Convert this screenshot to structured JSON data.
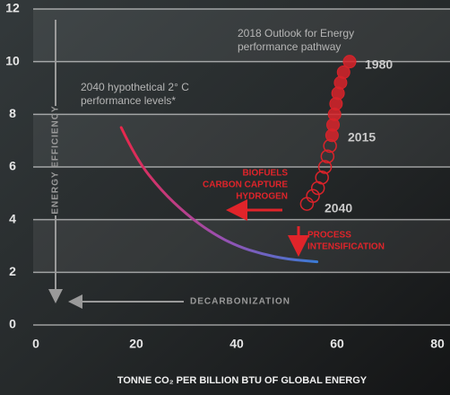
{
  "chart_data": {
    "type": "scatter",
    "xlim": [
      0,
      80
    ],
    "xticks": [
      0,
      20,
      40,
      60,
      80
    ],
    "ylim": [
      0,
      12
    ],
    "yticks": [
      0,
      2,
      4,
      6,
      8,
      10,
      12
    ],
    "xlabel": "TONNE CO₂ PER BILLION BTU OF GLOBAL ENERGY",
    "ylabel": "ENERGY EFFICIENCY",
    "x_arrow_label": "DECARBONIZATION",
    "grid": true,
    "series": [
      {
        "marker": "filled",
        "color": "#d8232a",
        "x": [
          62.5,
          61.3,
          60.7,
          60.2,
          59.8,
          59.5,
          59.2,
          59
        ],
        "values": [
          10,
          9.6,
          9.2,
          8.8,
          8.4,
          8,
          7.6,
          7.2
        ]
      },
      {
        "marker": "hollow",
        "color": "#d8232a",
        "x": [
          58.6,
          58.1,
          57.6,
          57,
          56.2,
          55.2,
          54
        ],
        "values": [
          6.8,
          6.4,
          6,
          5.6,
          5.2,
          4.9,
          4.6
        ]
      },
      {
        "marker": "line",
        "colors": [
          "#e8274b",
          "#9b4fb0",
          "#3a7bd5"
        ],
        "x": [
          17,
          20,
          25,
          30,
          35,
          40,
          45,
          50,
          56
        ],
        "values": [
          7.5,
          6.3,
          5.1,
          4.2,
          3.5,
          3.0,
          2.7,
          2.5,
          2.4
        ]
      }
    ],
    "annotations": [
      [
        "2018 Outlook for Energy",
        "performance pathway"
      ],
      [
        "2040 hypothetical 2° C",
        "performance levels*"
      ],
      [
        "BIOFUELS",
        "CARBON CAPTURE",
        "HYDROGEN"
      ],
      [
        "PROCESS",
        "INTENSIFICATION"
      ]
    ],
    "point_labels": [
      "1980",
      "2015",
      "2040"
    ]
  }
}
